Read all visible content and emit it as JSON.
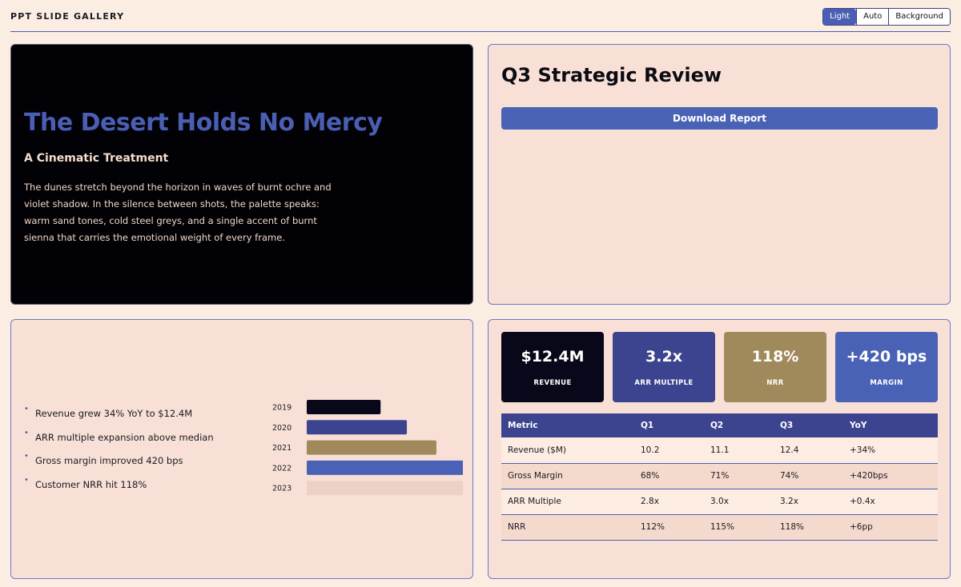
{
  "app": {
    "title": "PPT SLIDE GALLERY"
  },
  "theme_switch": {
    "options": [
      "Light",
      "Auto",
      "Background"
    ],
    "selected": "Light",
    "accent": "#4a5fb3"
  },
  "hero_slide": {
    "title": "The Desert Holds No Mercy",
    "subtitle": "A Cinematic Treatment",
    "body": "The dunes stretch beyond the horizon in waves of burnt ochre and violet shadow. In the silence between shots, the palette speaks: warm sand tones, cold steel greys, and a single accent of burnt sienna that carries the emotional weight of every frame.",
    "background": "#020206",
    "title_color": "#4a5fb3"
  },
  "review_slide": {
    "title": "Q3 Strategic Review",
    "download_label": "Download Report"
  },
  "bullets_slide": {
    "bullets": [
      "Revenue grew 34% YoY to $12.4M",
      "ARR multiple expansion above median",
      "Gross margin improved 420 bps",
      "Customer NRR hit 118%"
    ]
  },
  "chart_data": {
    "type": "bar",
    "orientation": "horizontal",
    "categories": [
      "2019",
      "2020",
      "2021",
      "2022",
      "2023"
    ],
    "values": [
      45,
      61,
      79,
      100,
      100
    ],
    "bar_colors": [
      "#08081a",
      "#3c4490",
      "#a08a5c",
      "#4a62b5",
      "#ecd2c6"
    ],
    "xlim": [
      0,
      100
    ],
    "title": "",
    "xlabel": "",
    "ylabel": "",
    "grid": false
  },
  "metrics_slide": {
    "kpis": [
      {
        "value": "$12.4M",
        "label": "REVENUE",
        "color": "#08081a"
      },
      {
        "value": "3.2x",
        "label": "ARR MULTIPLE",
        "color": "#3c4490"
      },
      {
        "value": "118%",
        "label": "NRR",
        "color": "#a08a5c"
      },
      {
        "value": "+420 bps",
        "label": "MARGIN",
        "color": "#4a62b5"
      }
    ],
    "table": {
      "headers": [
        "Metric",
        "Q1",
        "Q2",
        "Q3",
        "YoY"
      ],
      "rows": [
        [
          "Revenue ($M)",
          "10.2",
          "11.1",
          "12.4",
          "+34%"
        ],
        [
          "Gross Margin",
          "68%",
          "71%",
          "74%",
          "+420bps"
        ],
        [
          "ARR Multiple",
          "2.8x",
          "3.0x",
          "3.2x",
          "+0.4x"
        ],
        [
          "NRR",
          "112%",
          "115%",
          "118%",
          "+6pp"
        ]
      ]
    }
  }
}
